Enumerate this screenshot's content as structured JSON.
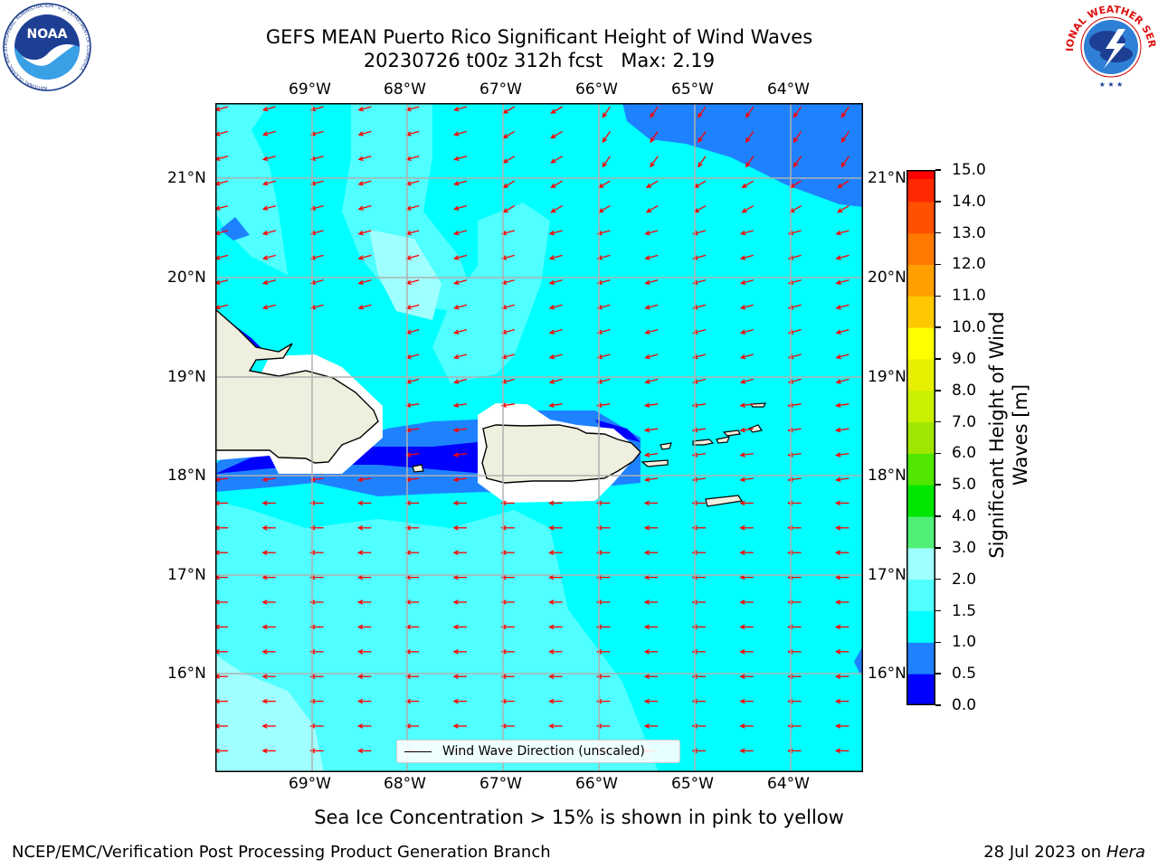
{
  "header": {
    "title_line1": "GEFS MEAN Puerto Rico Significant Height of Wind Waves",
    "title_line2": "20230726 t00z 312h fcst   Max: 2.19"
  },
  "logos": {
    "left": {
      "icon": "noaa-logo",
      "text": "NOAA",
      "ring_text": "NATIONAL OCEANIC AND ATMOSPHERIC ADMINISTRATION · U.S. DEPARTMENT OF COMMERCE"
    },
    "right": {
      "icon": "nws-logo",
      "ring_text": "NATIONAL WEATHER SERVICE"
    }
  },
  "map": {
    "lon_ticks": [
      "69°W",
      "68°W",
      "67°W",
      "66°W",
      "65°W",
      "64°W"
    ],
    "lat_ticks": [
      "21°N",
      "20°N",
      "19°N",
      "18°N",
      "17°N",
      "16°N"
    ],
    "legend_label": "Wind Wave Direction (unscaled)",
    "colors": {
      "land": "#efefdf",
      "ice_mask": "#ffffff",
      "arrow": "#ff0000",
      "grid": "#b0b0b0",
      "coast": "#000000"
    }
  },
  "colorbar": {
    "label": "Significant Height of Wind Waves [m]",
    "tick_labels": [
      "0.0",
      "0.5",
      "1.0",
      "1.5",
      "2.0",
      "3.0",
      "4.0",
      "5.0",
      "6.0",
      "7.0",
      "8.0",
      "9.0",
      "10.0",
      "11.0",
      "12.0",
      "13.0",
      "14.0",
      "15.0"
    ],
    "bins": [
      {
        "from": 0.0,
        "to": 0.5,
        "color": "#0000ff"
      },
      {
        "from": 0.5,
        "to": 1.0,
        "color": "#1e82ff"
      },
      {
        "from": 1.0,
        "to": 1.5,
        "color": "#00ffff"
      },
      {
        "from": 1.5,
        "to": 2.0,
        "color": "#50ffff"
      },
      {
        "from": 2.0,
        "to": 3.0,
        "color": "#a0ffff"
      },
      {
        "from": 3.0,
        "to": 4.0,
        "color": "#50f078"
      },
      {
        "from": 4.0,
        "to": 5.0,
        "color": "#00e600"
      },
      {
        "from": 5.0,
        "to": 6.0,
        "color": "#50e600"
      },
      {
        "from": 6.0,
        "to": 7.0,
        "color": "#a0e600"
      },
      {
        "from": 7.0,
        "to": 8.0,
        "color": "#c8f000"
      },
      {
        "from": 8.0,
        "to": 9.0,
        "color": "#e6f000"
      },
      {
        "from": 9.0,
        "to": 10.0,
        "color": "#ffff00"
      },
      {
        "from": 10.0,
        "to": 11.0,
        "color": "#ffc800"
      },
      {
        "from": 11.0,
        "to": 12.0,
        "color": "#ffa000"
      },
      {
        "from": 12.0,
        "to": 13.0,
        "color": "#ff7800"
      },
      {
        "from": 13.0,
        "to": 14.0,
        "color": "#ff5000"
      },
      {
        "from": 14.0,
        "to": 15.0,
        "color": "#ff2800"
      },
      {
        "from": 15.0,
        "to": 15.0,
        "color": "#ff0000"
      }
    ]
  },
  "notes": {
    "sea_ice": "Sea Ice Concentration > 15% is shown in pink to yellow"
  },
  "footer": {
    "left": "NCEP/EMC/Verification Post Processing Product Generation Branch",
    "right_date": "28 Jul 2023 on ",
    "right_machine": "Hera"
  }
}
